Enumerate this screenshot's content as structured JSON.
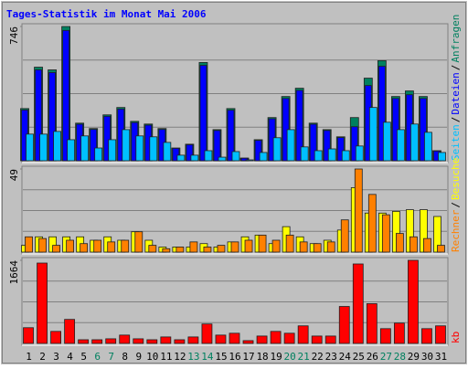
{
  "chart_data": {
    "type": "bar",
    "title": "Tages-Statistik im Monat Mai 2006",
    "categories": [
      "1",
      "2",
      "3",
      "4",
      "5",
      "6",
      "7",
      "8",
      "9",
      "10",
      "11",
      "12",
      "13",
      "14",
      "15",
      "16",
      "17",
      "18",
      "19",
      "20",
      "21",
      "22",
      "23",
      "24",
      "25",
      "26",
      "27",
      "28",
      "29",
      "30",
      "31"
    ],
    "category_colors": [
      "#000000",
      "#000000",
      "#000000",
      "#000000",
      "#000000",
      "#00805f",
      "#00805f",
      "#000000",
      "#000000",
      "#000000",
      "#000000",
      "#000000",
      "#00805f",
      "#00805f",
      "#000000",
      "#000000",
      "#000000",
      "#000000",
      "#000000",
      "#00805f",
      "#00805f",
      "#000000",
      "#000000",
      "#000000",
      "#000000",
      "#000000",
      "#00805f",
      "#00805f",
      "#000000",
      "#000000",
      "#000000"
    ],
    "legend_separator": "/",
    "grid": true,
    "panels": [
      {
        "ylim": [
          0,
          746
        ],
        "yticks": [
          746
        ],
        "series": [
          {
            "name": "Anfragen",
            "color": "#00805f",
            "values": [
              290,
              520,
              505,
              746,
              209,
              179,
              255,
              296,
              219,
              204,
              179,
              71,
              92,
              546,
              173,
              290,
              15,
              117,
              240,
              357,
              403,
              209,
              173,
              133,
              240,
              459,
              556,
              357,
              388,
              357,
              56
            ]
          },
          {
            "name": "Dateien",
            "color": "#0000ff",
            "values": [
              282,
              505,
              490,
              724,
              203,
              174,
              247,
              287,
              212,
              198,
              174,
              69,
              89,
              530,
              168,
              281,
              14,
              113,
              233,
              346,
              391,
              203,
              168,
              129,
              189,
              418,
              525,
              346,
              367,
              346,
              54
            ]
          },
          {
            "name": "Seiten",
            "color": "#00c0ff",
            "values": [
              148,
              148,
              163,
              117,
              138,
              71,
              117,
              173,
              138,
              133,
              102,
              31,
              31,
              56,
              20,
              51,
              5,
              46,
              128,
              173,
              77,
              56,
              66,
              56,
              82,
              296,
              214,
              173,
              204,
              158,
              46
            ]
          }
        ]
      },
      {
        "ylim": [
          0,
          49
        ],
        "yticks": [
          49
        ],
        "series": [
          {
            "name": "Besuche",
            "color": "#ffff00",
            "values": [
              4,
              9,
              9,
              9,
              9,
              7,
              9,
              7,
              12,
              7,
              3,
              3,
              3,
              5,
              3,
              6,
              9,
              10,
              5,
              15,
              9,
              5,
              7,
              13,
              38,
              23,
              23,
              24,
              25,
              25,
              21
            ]
          },
          {
            "name": "Rechner",
            "color": "#ff8000",
            "values": [
              9,
              8,
              4,
              7,
              5,
              7,
              6,
              7,
              12,
              4,
              2,
              3,
              6,
              3,
              4,
              6,
              7,
              10,
              7,
              10,
              6,
              5,
              6,
              19,
              49,
              34,
              22,
              11,
              9,
              8,
              4
            ]
          }
        ]
      },
      {
        "ylim": [
          0,
          1664
        ],
        "yticks": [
          1664
        ],
        "series": [
          {
            "name": "kb",
            "color": "#ff0000",
            "values": [
              315,
              1609,
              241,
              481,
              74,
              74,
              93,
              167,
              93,
              74,
              130,
              74,
              130,
              389,
              167,
              204,
              56,
              148,
              241,
              204,
              352,
              148,
              148,
              740,
              1591,
              796,
              296,
              407,
              1664,
              296,
              352
            ]
          }
        ]
      }
    ]
  }
}
